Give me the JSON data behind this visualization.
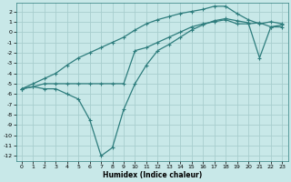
{
  "xlabel": "Humidex (Indice chaleur)",
  "bg_color": "#c8e8e8",
  "grid_color": "#a8cece",
  "line_color": "#2e7d7d",
  "line1_x": [
    0,
    1,
    2,
    3,
    4,
    5,
    6,
    7,
    8,
    9,
    10,
    11,
    12,
    13,
    14,
    15,
    16,
    17,
    18,
    19,
    20,
    21,
    22,
    23
  ],
  "line1_y": [
    -5.5,
    -5.3,
    -5.5,
    -5.5,
    -6.0,
    -6.5,
    -8.5,
    -12.0,
    -11.2,
    -7.5,
    -5.0,
    -3.2,
    -1.8,
    -1.2,
    -0.5,
    0.2,
    0.7,
    1.1,
    1.3,
    1.1,
    0.9,
    -2.5,
    0.5,
    0.5
  ],
  "line2_x": [
    0,
    1,
    2,
    3,
    4,
    5,
    6,
    7,
    8,
    9,
    10,
    11,
    12,
    13,
    14,
    15,
    16,
    17,
    18,
    19,
    20,
    21,
    22,
    23
  ],
  "line2_y": [
    -5.5,
    -5.3,
    -5.0,
    -5.0,
    -5.0,
    -5.0,
    -5.0,
    -5.0,
    -5.0,
    -5.0,
    -1.8,
    -1.5,
    -1.0,
    -0.5,
    0.0,
    0.5,
    0.8,
    1.0,
    1.2,
    0.8,
    0.8,
    0.9,
    0.5,
    0.7
  ],
  "line3_x": [
    0,
    1,
    2,
    3,
    4,
    5,
    6,
    7,
    8,
    9,
    10,
    11,
    12,
    13,
    14,
    15,
    16,
    17,
    18,
    19,
    20,
    21,
    22,
    23
  ],
  "line3_y": [
    -5.5,
    -5.0,
    -4.5,
    -4.0,
    -3.2,
    -2.5,
    -2.0,
    -1.5,
    -1.0,
    -0.5,
    0.2,
    0.8,
    1.2,
    1.5,
    1.8,
    2.0,
    2.2,
    2.5,
    2.5,
    1.8,
    1.2,
    0.8,
    1.0,
    0.8
  ],
  "xlim": [
    -0.5,
    23.5
  ],
  "ylim": [
    -12.5,
    2.8
  ],
  "yticks": [
    2,
    1,
    0,
    -1,
    -2,
    -3,
    -4,
    -5,
    -6,
    -7,
    -8,
    -9,
    -10,
    -11,
    -12
  ],
  "xticks": [
    0,
    1,
    2,
    3,
    4,
    5,
    6,
    7,
    8,
    9,
    10,
    11,
    12,
    13,
    14,
    15,
    16,
    17,
    18,
    19,
    20,
    21,
    22,
    23
  ],
  "tick_fontsize": 4.5,
  "xlabel_fontsize": 5.5
}
